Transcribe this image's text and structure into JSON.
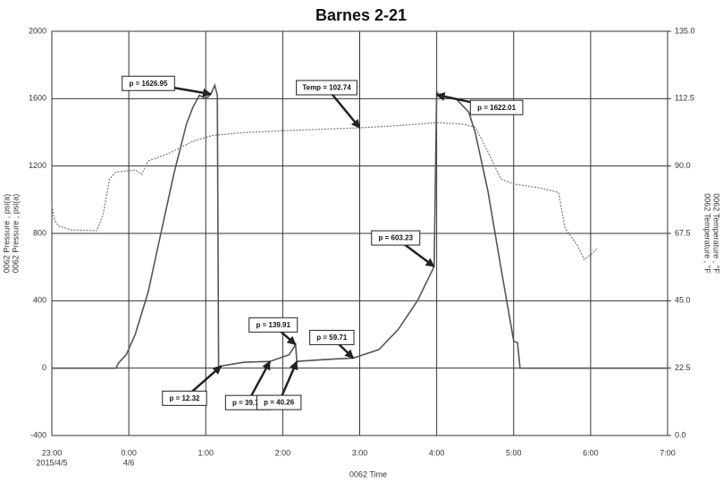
{
  "chart_data": {
    "type": "line",
    "title": "Barnes 2-21",
    "xlabel": "0062 Time",
    "ylabel": [
      "0062 Pressure , psi(a)",
      "0062 Pressure , psi(a)"
    ],
    "y2label": [
      "0062 Temperature , °F",
      "0062 Temperature , °F"
    ],
    "xlim": [
      "2015-04-05 23:00",
      "2015-04-06 07:00"
    ],
    "xticks": [
      {
        "value": "2015-04-05 23:00",
        "label": "23:00",
        "date": "2015/4/5"
      },
      {
        "value": "2015-04-06 00:00",
        "label": "0:00",
        "date": "4/6"
      },
      {
        "value": "2015-04-06 01:00",
        "label": "1:00"
      },
      {
        "value": "2015-04-06 02:00",
        "label": "2:00"
      },
      {
        "value": "2015-04-06 03:00",
        "label": "3:00"
      },
      {
        "value": "2015-04-06 04:00",
        "label": "4:00"
      },
      {
        "value": "2015-04-06 05:00",
        "label": "5:00"
      },
      {
        "value": "2015-04-06 06:00",
        "label": "6:00"
      },
      {
        "value": "2015-04-06 07:00",
        "label": "7:00"
      }
    ],
    "ylim": [
      -400,
      2000
    ],
    "yticks": [
      -400,
      0,
      400,
      800,
      1200,
      1600,
      2000
    ],
    "y2lim": [
      0,
      135
    ],
    "y2ticks": [
      {
        "value": 0,
        "label": "0.0"
      },
      22.5,
      {
        "value": 45,
        "label": "45.0"
      },
      67.5,
      {
        "value": 90,
        "label": "90.0"
      },
      112.5,
      {
        "value": 135,
        "label": "135.0"
      }
    ],
    "grid": true,
    "series": [
      {
        "name": "0062 Pressure",
        "color": "#555555",
        "dash": false,
        "x": [
          "2015-04-05 23:00",
          "2015-04-05 23:50",
          "2015-04-05 23:52",
          "2015-04-05 23:58",
          "2015-04-06 00:05",
          "2015-04-06 00:15",
          "2015-04-06 00:25",
          "2015-04-06 00:35",
          "2015-04-06 00:45",
          "2015-04-06 00:50",
          "2015-04-06 00:55",
          "2015-04-06 01:00",
          "2015-04-06 01:04",
          "2015-04-06 01:07",
          "2015-04-06 01:09",
          "2015-04-06 01:10",
          "2015-04-06 01:12",
          "2015-04-06 01:30",
          "2015-04-06 01:50",
          "2015-04-06 02:05",
          "2015-04-06 02:10",
          "2015-04-06 02:11",
          "2015-04-06 02:30",
          "2015-04-06 02:55",
          "2015-04-06 03:15",
          "2015-04-06 03:30",
          "2015-04-06 03:45",
          "2015-04-06 03:58",
          "2015-04-06 04:00",
          "2015-04-06 04:02",
          "2015-04-06 04:15",
          "2015-04-06 04:25",
          "2015-04-06 04:30",
          "2015-04-06 04:40",
          "2015-04-06 04:50",
          "2015-04-06 04:58",
          "2015-04-06 05:00",
          "2015-04-06 05:03",
          "2015-04-06 05:05",
          "2015-04-06 07:00"
        ],
        "values": [
          0,
          0,
          30,
          80,
          200,
          450,
          800,
          1150,
          1450,
          1550,
          1620,
          1600,
          1626.95,
          1680,
          1620,
          0,
          12.32,
          35,
          39.74,
          80,
          139.91,
          40.26,
          50,
          59.71,
          110,
          230,
          400,
          603.23,
          1640,
          1622.01,
          1600,
          1520,
          1400,
          1050,
          600,
          250,
          160,
          150,
          0,
          0
        ]
      },
      {
        "name": "0062 Temperature",
        "color": "#777777",
        "dash": true,
        "axis": "y2",
        "x": [
          "2015-04-05 23:00",
          "2015-04-05 23:02",
          "2015-04-05 23:05",
          "2015-04-05 23:15",
          "2015-04-05 23:35",
          "2015-04-05 23:40",
          "2015-04-05 23:45",
          "2015-04-05 23:50",
          "2015-04-06 00:05",
          "2015-04-06 00:10",
          "2015-04-06 00:15",
          "2015-04-06 00:30",
          "2015-04-06 00:50",
          "2015-04-06 01:05",
          "2015-04-06 01:30",
          "2015-04-06 02:00",
          "2015-04-06 02:30",
          "2015-04-06 03:00",
          "2015-04-06 03:30",
          "2015-04-06 04:00",
          "2015-04-06 04:20",
          "2015-04-06 04:30",
          "2015-04-06 04:40",
          "2015-04-06 04:50",
          "2015-04-06 05:00",
          "2015-04-06 05:20",
          "2015-04-06 05:35",
          "2015-04-06 05:40",
          "2015-04-06 05:50",
          "2015-04-06 05:55",
          "2015-04-06 06:00",
          "2015-04-06 06:05"
        ],
        "values": [
          76.8,
          72,
          70,
          68.7,
          68.4,
          73.8,
          85.7,
          88,
          88.7,
          87.2,
          91.7,
          94,
          98.3,
          100.2,
          101.2,
          101.8,
          102.3,
          102.74,
          103.5,
          104.5,
          104,
          103,
          94.7,
          85.7,
          84,
          82.7,
          81.2,
          69.3,
          63.3,
          58.8,
          60.3,
          62.4
        ]
      }
    ],
    "annotations": [
      {
        "text": "p = 1626.95",
        "x": "2015-04-06 01:04",
        "y": 1626.95
      },
      {
        "text": "Temp = 102.74",
        "x": "2015-04-06 03:00",
        "y": 102.74,
        "axis": "y2"
      },
      {
        "text": "p = 1622.01",
        "x": "2015-04-06 04:00",
        "y": 1622.01
      },
      {
        "text": "p = 603.23",
        "x": "2015-04-06 03:58",
        "y": 603.23
      },
      {
        "text": "p = 139.91",
        "x": "2015-04-06 02:10",
        "y": 139.91
      },
      {
        "text": "p = 59.71",
        "x": "2015-04-06 02:55",
        "y": 59.71
      },
      {
        "text": "p = 12.32",
        "x": "2015-04-06 01:12",
        "y": 12.32
      },
      {
        "text": "p = 39.74",
        "x": "2015-04-06 01:50",
        "y": 39.74
      },
      {
        "text": "p = 40.26",
        "x": "2015-04-06 02:11",
        "y": 40.26
      }
    ]
  }
}
